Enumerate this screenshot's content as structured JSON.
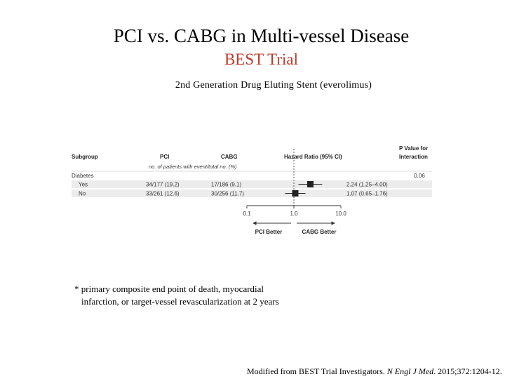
{
  "slide": {
    "title": "PCI vs. CABG in Multi-vessel Disease",
    "subtitle": "BEST Trial",
    "stent_label": "2nd Generation Drug Eluting Stent (everolimus)",
    "footnote_line1": "* primary composite end point of death, myocardial",
    "footnote_line2": "infarction, or target-vessel revascularization at 2 years",
    "citation_prefix": "Modified from BEST Trial Investigators. ",
    "citation_journal": "N Engl J Med",
    "citation_suffix": ". 2015;372:1204-12."
  },
  "colors": {
    "subtitle": "#c0392b",
    "row_shade": "#ececec",
    "marker": "#222222"
  },
  "chart_data": {
    "type": "forest",
    "headers": {
      "subgroup": "Subgroup",
      "pci": "PCI",
      "cabg": "CABG",
      "counts_note": "no. of patients with event/total no. (%)",
      "hr": "Hazard Ratio (95% CI)",
      "p_line1": "P Value for",
      "p_line2": "Interaction"
    },
    "group": {
      "label": "Diabetes",
      "p_interaction": "0.06"
    },
    "rows": [
      {
        "label": "Yes",
        "pci": "34/177 (19.2)",
        "cabg": "17/186 (9.1)",
        "hr_text": "2.24 (1.25–4.00)",
        "hr": 2.24,
        "lo": 1.25,
        "hi": 4.0
      },
      {
        "label": "No",
        "pci": "33/261 (12.6)",
        "cabg": "30/256 (11.7)",
        "hr_text": "1.07 (0.65–1.76)",
        "hr": 1.07,
        "lo": 0.65,
        "hi": 1.76
      }
    ],
    "x_scale": "log",
    "xlim": [
      0.1,
      10.0
    ],
    "x_ticks": [
      "0.1",
      "1.0",
      "10.0"
    ],
    "reference_line": 1.0,
    "direction_labels": {
      "left": "PCI Better",
      "right": "CABG Better"
    }
  }
}
